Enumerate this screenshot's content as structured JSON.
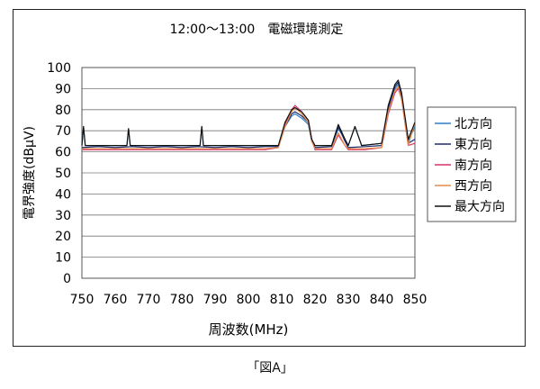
{
  "caption": "「図A」",
  "chart_data": {
    "type": "line",
    "title": "12:00～13:00　電磁環境測定",
    "xlabel": "周波数(MHz)",
    "ylabel": "電界強度(dBμV)",
    "xlim": [
      750,
      850
    ],
    "ylim": [
      0,
      100
    ],
    "xticks": [
      750,
      760,
      770,
      780,
      790,
      800,
      810,
      820,
      830,
      840,
      850
    ],
    "yticks": [
      0,
      10,
      20,
      30,
      40,
      50,
      60,
      70,
      80,
      90,
      100
    ],
    "grid": true,
    "legend_position": "right",
    "series": [
      {
        "name": "北方向",
        "color": "#2b7fc6",
        "x": [
          750,
          750.5,
          751,
          752,
          760,
          763.5,
          764,
          764.5,
          770,
          780,
          785.5,
          786,
          786.5,
          790,
          800,
          805,
          809,
          811,
          813,
          814,
          816,
          818,
          819,
          820,
          825,
          827,
          829,
          830,
          832,
          834,
          840,
          842,
          844,
          845,
          846,
          848,
          850
        ],
        "y": [
          63,
          72,
          63,
          63,
          63,
          63,
          71,
          63,
          63,
          63,
          63,
          72,
          63,
          63,
          63,
          63,
          63,
          72,
          77,
          78,
          76,
          73,
          65,
          63,
          63,
          71,
          66,
          63,
          72,
          63,
          64,
          80,
          90,
          92,
          86,
          65,
          72
        ]
      },
      {
        "name": "東方向",
        "color": "#1b2a6b",
        "x": [
          750,
          755,
          760,
          765,
          770,
          775,
          780,
          785,
          790,
          795,
          800,
          805,
          809,
          811,
          813,
          814,
          816,
          818,
          819,
          820,
          825,
          827,
          829,
          830,
          835,
          840,
          842,
          844,
          845,
          846,
          848,
          850
        ],
        "y": [
          62,
          62.5,
          62,
          62.5,
          62,
          62.5,
          62,
          62.5,
          62,
          62.5,
          62,
          62.5,
          62.5,
          72,
          78,
          79,
          77,
          74,
          66,
          62,
          62.5,
          72,
          65,
          62,
          62.5,
          63,
          81,
          91,
          93,
          87,
          64,
          66
        ]
      },
      {
        "name": "南方向",
        "color": "#d6336c",
        "x": [
          750,
          755,
          760,
          765,
          770,
          775,
          780,
          785,
          790,
          795,
          800,
          805,
          809,
          811,
          813,
          814,
          816,
          818,
          819,
          820,
          825,
          827,
          829,
          830,
          835,
          840,
          842,
          844,
          845,
          846,
          848,
          850
        ],
        "y": [
          61,
          61,
          61,
          61,
          61,
          61,
          61,
          61,
          61,
          61,
          61,
          61,
          62,
          73,
          80,
          82,
          79,
          75,
          66,
          61,
          61,
          68,
          63,
          61,
          61,
          62,
          78,
          88,
          90,
          85,
          63,
          64
        ]
      },
      {
        "name": "西方向",
        "color": "#e38a4c",
        "x": [
          750,
          755,
          760,
          765,
          770,
          775,
          780,
          785,
          790,
          795,
          800,
          805,
          809,
          811,
          813,
          814,
          816,
          818,
          819,
          820,
          825,
          827,
          829,
          830,
          835,
          840,
          842,
          844,
          845,
          846,
          848,
          850
        ],
        "y": [
          61.5,
          61.5,
          61.5,
          61.5,
          61.5,
          61.5,
          61.5,
          61.5,
          61.5,
          61.5,
          61.5,
          61.5,
          62,
          72,
          79,
          81,
          78,
          74,
          65,
          61.5,
          61.5,
          69,
          63,
          61.5,
          61.5,
          62,
          79,
          89,
          91,
          85,
          63,
          74
        ]
      },
      {
        "name": "最大方向",
        "color": "#111111",
        "x": [
          750,
          750.5,
          751,
          760,
          763.5,
          764,
          764.5,
          770,
          780,
          785.5,
          786,
          786.5,
          790,
          800,
          805,
          809,
          811,
          813,
          814,
          816,
          818,
          819,
          820,
          825,
          827,
          829,
          830,
          832,
          834,
          840,
          842,
          844,
          845,
          846,
          848,
          850
        ],
        "y": [
          63,
          72,
          63,
          63,
          63,
          71,
          63,
          63,
          63,
          63,
          72,
          63,
          63,
          63,
          63,
          63,
          74,
          80,
          81,
          79,
          75,
          66,
          63,
          63,
          73,
          66,
          63,
          72,
          63,
          64,
          82,
          92,
          94,
          88,
          66,
          74
        ]
      }
    ]
  }
}
